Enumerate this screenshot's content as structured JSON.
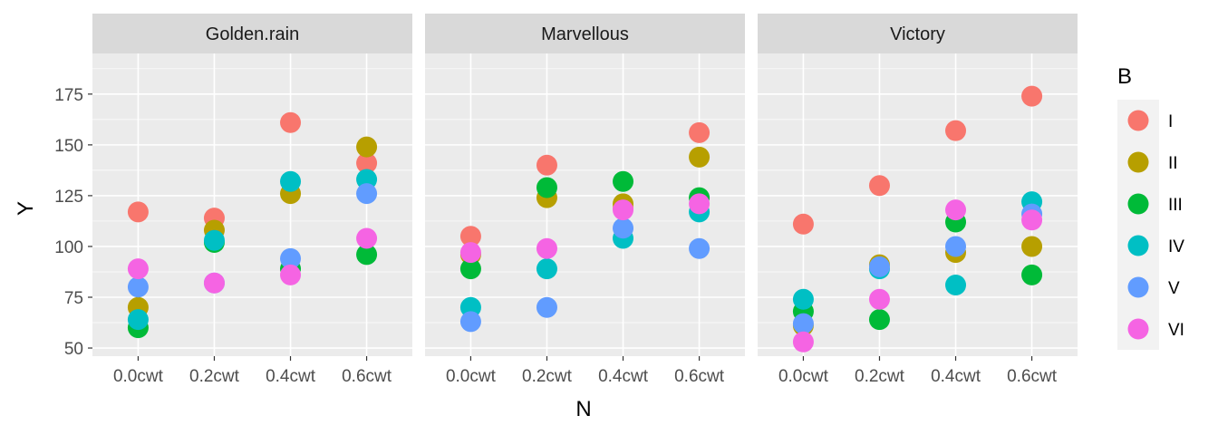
{
  "chart_data": {
    "type": "scatter",
    "xlabel": "N",
    "ylabel": "Y",
    "categories": [
      "0.0cwt",
      "0.2cwt",
      "0.4cwt",
      "0.6cwt"
    ],
    "ylim": [
      46,
      195
    ],
    "y_ticks": [
      50,
      75,
      100,
      125,
      150,
      175
    ],
    "grid": true,
    "legend": {
      "title": "B",
      "placement": "right",
      "entries": [
        "I",
        "II",
        "III",
        "IV",
        "V",
        "VI"
      ],
      "colors": [
        "#F8766D",
        "#B79F00",
        "#00BA38",
        "#00BFC4",
        "#619CFF",
        "#F564E3"
      ]
    },
    "panels": [
      {
        "name": "Golden.rain",
        "series": [
          {
            "name": "I",
            "values": [
              117,
              114,
              161,
              141
            ]
          },
          {
            "name": "II",
            "values": [
              70,
              108,
              126,
              149
            ]
          },
          {
            "name": "III",
            "values": [
              60,
              102,
              89,
              96
            ]
          },
          {
            "name": "IV",
            "values": [
              64,
              103,
              132,
              133
            ]
          },
          {
            "name": "V",
            "values": [
              80,
              82,
              94,
              126
            ]
          },
          {
            "name": "VI",
            "values": [
              89,
              82,
              86,
              104
            ]
          }
        ]
      },
      {
        "name": "Marvellous",
        "series": [
          {
            "name": "I",
            "values": [
              105,
              140,
              119,
              156
            ]
          },
          {
            "name": "II",
            "values": [
              96,
              124,
              121,
              144
            ]
          },
          {
            "name": "III",
            "values": [
              89,
              129,
              132,
              124
            ]
          },
          {
            "name": "IV",
            "values": [
              70,
              89,
              104,
              117
            ]
          },
          {
            "name": "V",
            "values": [
              63,
              70,
              109,
              99
            ]
          },
          {
            "name": "VI",
            "values": [
              97,
              99,
              118,
              121
            ]
          }
        ]
      },
      {
        "name": "Victory",
        "series": [
          {
            "name": "I",
            "values": [
              111,
              130,
              157,
              174
            ]
          },
          {
            "name": "II",
            "values": [
              61,
              91,
              97,
              100
            ]
          },
          {
            "name": "III",
            "values": [
              68,
              64,
              112,
              86
            ]
          },
          {
            "name": "IV",
            "values": [
              74,
              89,
              81,
              122
            ]
          },
          {
            "name": "V",
            "values": [
              62,
              90,
              100,
              116
            ]
          },
          {
            "name": "VI",
            "values": [
              53,
              74,
              118,
              113
            ]
          }
        ]
      }
    ]
  }
}
